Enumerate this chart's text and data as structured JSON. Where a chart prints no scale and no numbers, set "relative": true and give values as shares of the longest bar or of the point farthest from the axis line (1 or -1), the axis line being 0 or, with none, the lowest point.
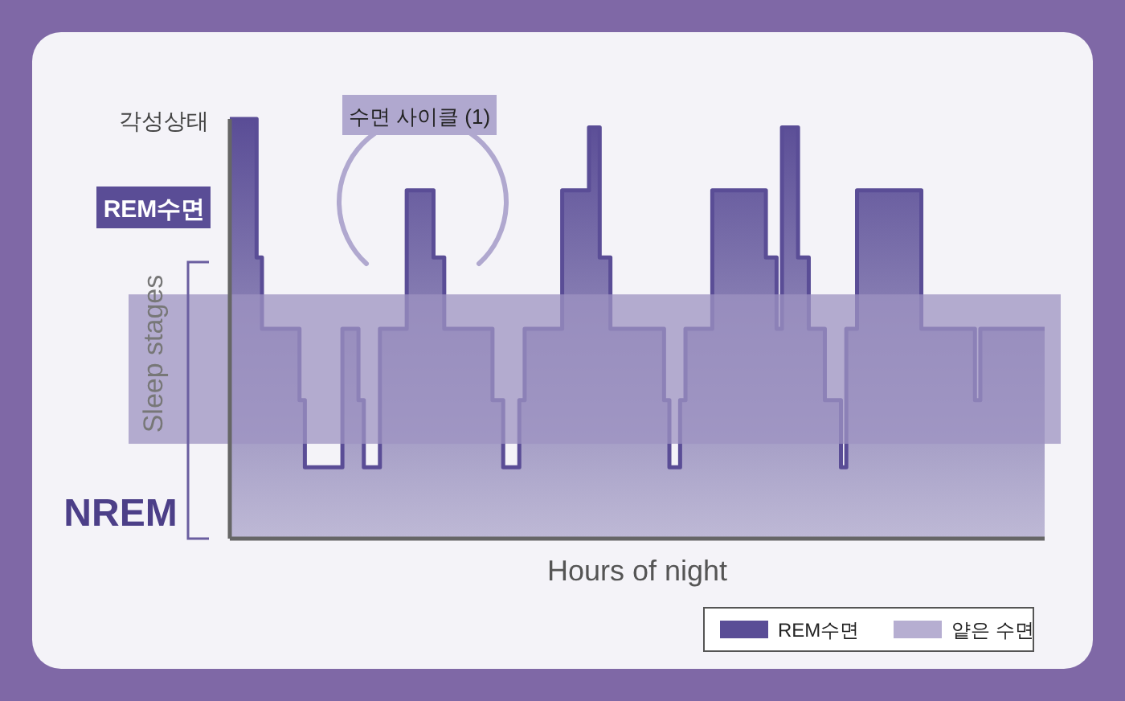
{
  "chart_data": {
    "type": "area",
    "xlabel": "Hours of night",
    "ylabel": "Sleep stages",
    "relative": true,
    "categories": [
      null,
      null,
      null,
      null,
      null,
      null,
      null,
      null,
      null,
      null,
      null,
      null,
      null,
      null,
      null,
      null,
      null,
      null,
      null,
      null,
      null,
      null,
      null,
      null,
      null,
      null,
      null,
      null,
      null,
      null,
      null,
      null,
      null,
      null,
      null,
      null,
      null,
      null,
      null,
      null,
      null,
      null,
      null,
      null,
      null,
      null,
      null,
      null,
      null,
      null,
      null,
      null,
      null,
      null,
      null,
      null,
      null,
      null,
      null,
      null,
      null,
      null,
      null,
      null,
      null,
      null,
      null,
      null,
      null,
      null,
      null,
      null,
      null,
      null,
      null,
      null,
      null,
      null,
      null,
      null,
      null,
      null,
      null,
      null,
      null,
      null,
      null,
      null,
      null,
      null,
      null,
      null,
      null,
      null,
      null,
      null,
      null,
      null,
      null,
      null,
      null,
      null,
      null,
      null,
      null,
      null,
      null,
      null,
      null,
      null,
      null,
      null,
      null,
      null,
      null,
      null,
      null,
      null,
      null,
      null,
      null,
      null,
      null,
      null,
      null,
      null,
      null,
      null,
      null,
      null,
      null,
      null,
      null,
      null,
      null,
      null,
      null,
      null,
      null,
      null,
      null,
      null,
      null,
      null,
      null,
      null,
      null,
      null,
      null,
      null,
      null,
      null
    ],
    "series": [
      {
        "name": "REM수면",
        "color": "#5a4d96",
        "values": [
          1.0,
          1.0,
          1.0,
          1.0,
          1.0,
          0.67,
          0.5,
          0.5,
          0.5,
          0.5,
          0.5,
          0.5,
          0.5,
          0.33,
          0.17,
          0.17,
          0.17,
          0.17,
          0.17,
          0.17,
          0.17,
          0.5,
          0.5,
          0.5,
          0.33,
          0.17,
          0.17,
          0.17,
          0.5,
          0.5,
          0.5,
          0.5,
          0.5,
          0.83,
          0.83,
          0.83,
          0.83,
          0.83,
          0.67,
          0.67,
          0.5,
          0.5,
          0.5,
          0.5,
          0.5,
          0.5,
          0.5,
          0.5,
          0.5,
          0.33,
          0.33,
          0.17,
          0.17,
          0.17,
          0.33,
          0.5,
          0.5,
          0.5,
          0.5,
          0.5,
          0.5,
          0.5,
          0.83,
          0.83,
          0.83,
          0.83,
          0.83,
          0.98,
          0.98,
          0.67,
          0.67,
          0.5,
          0.5,
          0.5,
          0.5,
          0.5,
          0.5,
          0.5,
          0.5,
          0.5,
          0.5,
          0.33,
          0.17,
          0.17,
          0.33,
          0.5,
          0.5,
          0.5,
          0.5,
          0.5,
          0.83,
          0.83,
          0.83,
          0.83,
          0.83,
          0.83,
          0.83,
          0.83,
          0.83,
          0.83,
          0.67,
          0.67,
          0.5,
          0.98,
          0.98,
          0.98,
          0.67,
          0.67,
          0.5,
          0.5,
          0.5,
          0.33,
          0.33,
          0.33,
          0.17,
          0.5,
          0.5,
          0.83,
          0.83,
          0.83,
          0.83,
          0.83,
          0.83,
          0.83,
          0.83,
          0.83,
          0.83,
          0.83,
          0.83,
          0.5,
          0.5,
          0.5,
          0.5,
          0.5,
          0.5,
          0.5,
          0.5,
          0.5,
          0.5,
          0.33,
          0.5,
          0.5,
          0.5,
          0.5,
          0.5,
          0.5,
          0.5,
          0.5,
          0.5,
          0.5,
          0.5,
          0.5
        ]
      }
    ],
    "bands": [
      {
        "axis": "y",
        "from": 0.226,
        "to": 0.582,
        "label": "얕은 수면",
        "color": "#9d93c2"
      }
    ],
    "annotations": [
      "각성상태",
      "REM수면",
      "NREM",
      "수면 사이클 (1)"
    ],
    "legend": "bottom right"
  }
}
